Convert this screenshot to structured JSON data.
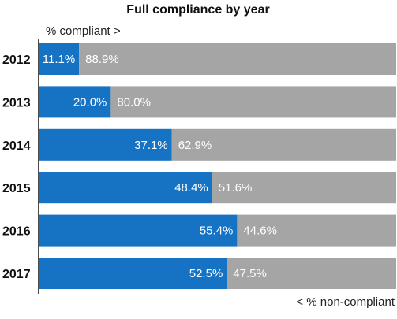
{
  "chart_data": {
    "type": "bar",
    "orientation": "horizontal",
    "stacked": true,
    "title": "Full compliance by year",
    "top_label": "% compliant >",
    "bottom_label": "< % non-compliant",
    "categories": [
      "2012",
      "2013",
      "2014",
      "2015",
      "2016",
      "2017"
    ],
    "series": [
      {
        "values": [
          11.1,
          20.0,
          37.1,
          48.4,
          55.4,
          52.5
        ],
        "labels": [
          "11.1%",
          "20.0%",
          "37.1%",
          "48.4%",
          "55.4%",
          "52.5%"
        ],
        "color": "#1673c4"
      },
      {
        "values": [
          88.9,
          80.0,
          62.9,
          51.6,
          44.6,
          47.5
        ],
        "labels": [
          "88.9%",
          "80.0%",
          "62.9%",
          "51.6%",
          "44.6%",
          "47.5%"
        ],
        "color": "#a5a5a5"
      }
    ],
    "xlim": [
      0,
      100
    ],
    "grid": false,
    "legend": "none"
  }
}
